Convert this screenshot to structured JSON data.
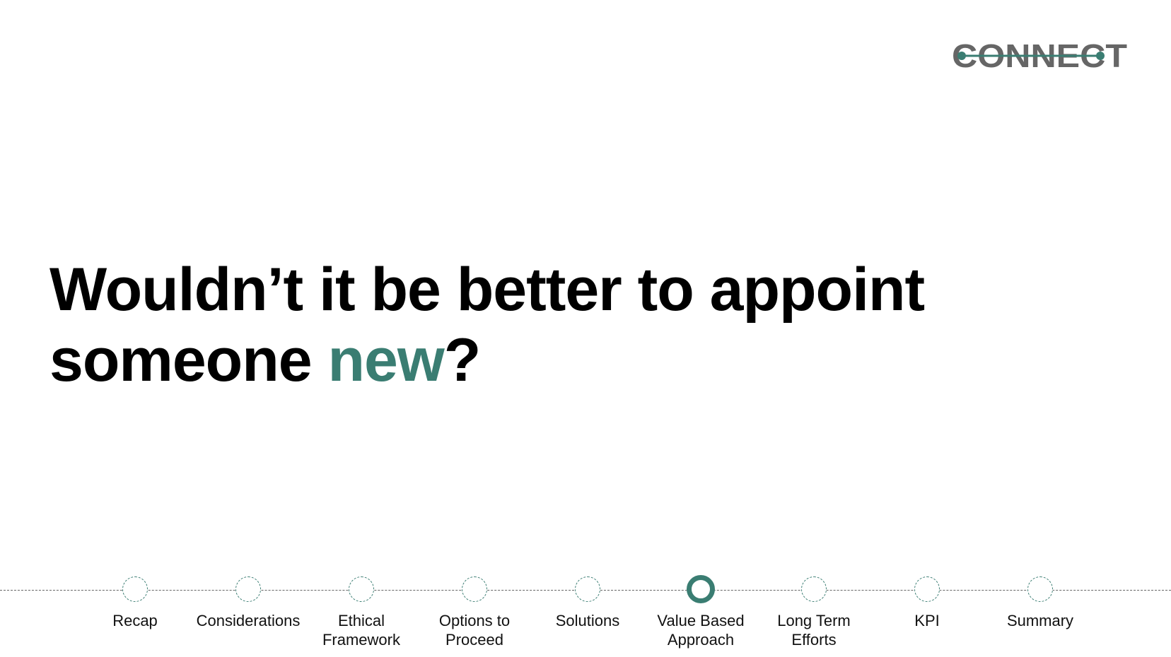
{
  "logo": {
    "text": "CONNECT",
    "text_color": "#666666",
    "accent_color": "#3a7d72"
  },
  "headline": {
    "part1": "Wouldn’t it be better to appoint someone ",
    "accent": "new",
    "part2": "?",
    "accent_color": "#3a7d72"
  },
  "timeline": {
    "active_index": 5,
    "steps": [
      {
        "label": "Recap"
      },
      {
        "label": "Considerations"
      },
      {
        "label": "Ethical\nFramework"
      },
      {
        "label": "Options to\nProceed"
      },
      {
        "label": "Solutions"
      },
      {
        "label": "Value Based\nApproach"
      },
      {
        "label": "Long Term\nEfforts"
      },
      {
        "label": "KPI"
      },
      {
        "label": "Summary"
      }
    ]
  }
}
